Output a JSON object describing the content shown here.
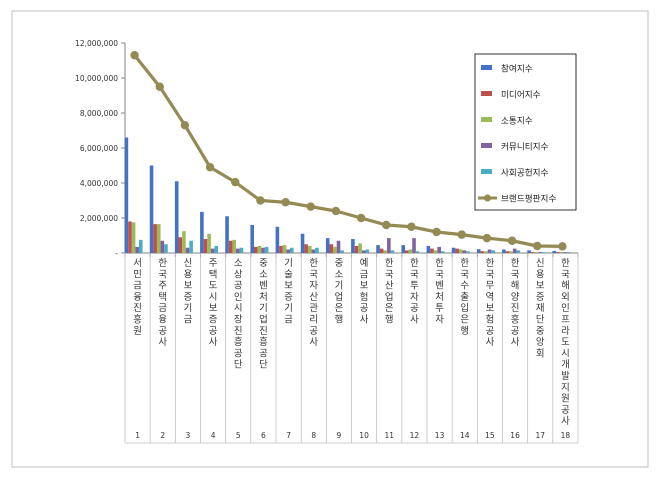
{
  "chart_data": {
    "type": "bar",
    "title": "",
    "xlabel": "",
    "ylabel": "",
    "ylim": [
      0,
      12000000
    ],
    "yticks": [
      "-",
      "2,000,000",
      "4,000,000",
      "6,000,000",
      "8,000,000",
      "10,000,000",
      "12,000,000"
    ],
    "ytick_values": [
      0,
      2000000,
      4000000,
      6000000,
      8000000,
      10000000,
      12000000
    ],
    "grid": false,
    "legend_position": "right",
    "categories": [
      "서민금융진흥원",
      "한국주택금융공사",
      "신용보증기금",
      "주택도시보증공사",
      "소상공인시장진흥공단",
      "중소벤처기업진흥공단",
      "기술보증기금",
      "한국자산관리공사",
      "중소기업은행",
      "예금보험공사",
      "한국산업은행",
      "한국투자공사",
      "한국벤처투자",
      "한국수출입은행",
      "한국무역보험공사",
      "한국해양진흥공사",
      "신용보증재단중앙회",
      "한국해외인프라도시개발지원공사"
    ],
    "ranks": [
      "1",
      "2",
      "3",
      "4",
      "5",
      "6",
      "7",
      "8",
      "9",
      "10",
      "11",
      "12",
      "13",
      "14",
      "15",
      "16",
      "17",
      "18"
    ],
    "series": [
      {
        "name": "참여지수",
        "color": "#4472C4",
        "kind": "bar",
        "values": [
          6600000,
          5000000,
          4100000,
          2350000,
          2100000,
          1600000,
          1500000,
          1100000,
          850000,
          800000,
          450000,
          450000,
          400000,
          300000,
          220000,
          200000,
          150000,
          120000
        ]
      },
      {
        "name": "미디어지수",
        "color": "#C0504D",
        "kind": "bar",
        "values": [
          1800000,
          1650000,
          900000,
          800000,
          700000,
          350000,
          400000,
          500000,
          500000,
          400000,
          250000,
          150000,
          250000,
          250000,
          100000,
          100000,
          50000,
          60000
        ]
      },
      {
        "name": "소통지수",
        "color": "#9BBB59",
        "kind": "bar",
        "values": [
          1750000,
          1650000,
          1250000,
          1100000,
          750000,
          400000,
          450000,
          400000,
          350000,
          550000,
          150000,
          200000,
          150000,
          200000,
          100000,
          100000,
          60000,
          60000
        ]
      },
      {
        "name": "커뮤니티지수",
        "color": "#8064A2",
        "kind": "bar",
        "values": [
          350000,
          700000,
          300000,
          250000,
          250000,
          300000,
          200000,
          200000,
          700000,
          150000,
          850000,
          850000,
          350000,
          150000,
          200000,
          250000,
          50000,
          50000
        ]
      },
      {
        "name": "사회공헌지수",
        "color": "#4BACC6",
        "kind": "bar",
        "values": [
          750000,
          500000,
          700000,
          400000,
          300000,
          350000,
          300000,
          300000,
          150000,
          200000,
          150000,
          100000,
          100000,
          100000,
          150000,
          150000,
          50000,
          50000
        ]
      },
      {
        "name": "브랜드평판지수",
        "color": "#948A54",
        "kind": "line",
        "values": [
          11300000,
          9500000,
          7300000,
          4900000,
          4050000,
          3000000,
          2900000,
          2650000,
          2400000,
          2000000,
          1600000,
          1500000,
          1200000,
          1050000,
          850000,
          700000,
          400000,
          380000
        ]
      }
    ]
  }
}
